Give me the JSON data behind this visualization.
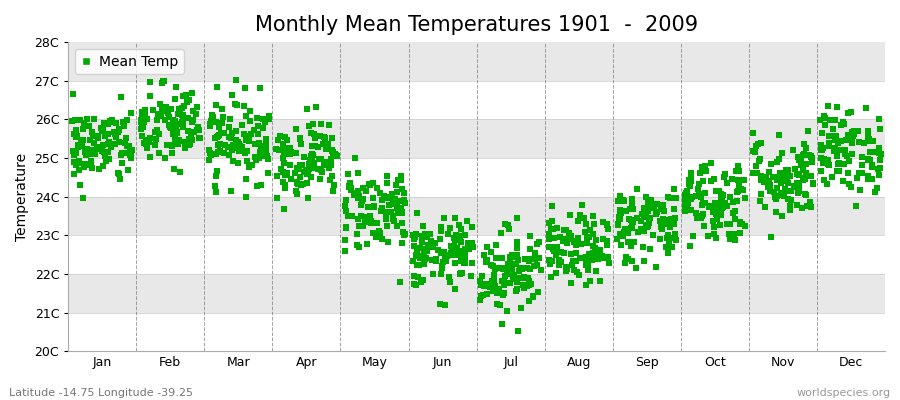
{
  "title": "Monthly Mean Temperatures 1901  -  2009",
  "ylabel": "Temperature",
  "ylim": [
    20,
    28
  ],
  "ytick_labels": [
    "20C",
    "21C",
    "22C",
    "23C",
    "24C",
    "25C",
    "26C",
    "27C",
    "28C"
  ],
  "ytick_values": [
    20,
    21,
    22,
    23,
    24,
    25,
    26,
    27,
    28
  ],
  "month_labels": [
    "Jan",
    "Feb",
    "Mar",
    "Apr",
    "May",
    "Jun",
    "Jul",
    "Aug",
    "Sep",
    "Oct",
    "Nov",
    "Dec"
  ],
  "monthly_mean": [
    25.3,
    25.8,
    25.5,
    25.0,
    23.7,
    22.5,
    22.1,
    22.6,
    23.3,
    23.9,
    24.5,
    25.2
  ],
  "monthly_std": [
    0.5,
    0.55,
    0.55,
    0.5,
    0.55,
    0.45,
    0.55,
    0.45,
    0.5,
    0.55,
    0.55,
    0.55
  ],
  "n_years": 109,
  "random_seed": 42,
  "marker_color": "#00aa00",
  "marker": "s",
  "marker_size": 4,
  "bg_white": "#ffffff",
  "bg_gray": "#ebebeb",
  "plot_bg": "#f0f0f0",
  "legend_label": "Mean Temp",
  "bottom_left_text": "Latitude -14.75 Longitude -39.25",
  "bottom_right_text": "worldspecies.org",
  "grid_color": "#666666",
  "title_fontsize": 15,
  "axis_fontsize": 10,
  "tick_fontsize": 9,
  "annotation_fontsize": 8,
  "band_colors": [
    "#ffffff",
    "#e8e8e8"
  ]
}
